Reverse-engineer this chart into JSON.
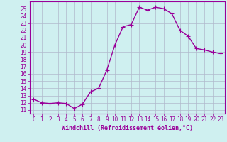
{
  "x": [
    0,
    1,
    2,
    3,
    4,
    5,
    6,
    7,
    8,
    9,
    10,
    11,
    12,
    13,
    14,
    15,
    16,
    17,
    18,
    19,
    20,
    21,
    22,
    23
  ],
  "y": [
    12.5,
    12.0,
    11.9,
    12.0,
    11.9,
    11.2,
    11.8,
    13.5,
    14.0,
    16.5,
    20.0,
    22.5,
    22.8,
    25.2,
    24.8,
    25.2,
    25.0,
    24.3,
    22.0,
    21.2,
    19.5,
    19.3,
    19.0,
    18.8
  ],
  "line_color": "#990099",
  "marker": "+",
  "markersize": 4,
  "linewidth": 1.0,
  "markeredgewidth": 0.8,
  "xlabel": "Windchill (Refroidissement éolien,°C)",
  "xlabel_fontsize": 6.0,
  "ylabel_ticks": [
    11,
    12,
    13,
    14,
    15,
    16,
    17,
    18,
    19,
    20,
    21,
    22,
    23,
    24,
    25
  ],
  "xticks": [
    0,
    1,
    2,
    3,
    4,
    5,
    6,
    7,
    8,
    9,
    10,
    11,
    12,
    13,
    14,
    15,
    16,
    17,
    18,
    19,
    20,
    21,
    22,
    23
  ],
  "xlim": [
    -0.5,
    23.5
  ],
  "ylim": [
    10.5,
    26.0
  ],
  "bg_color": "#cff0f0",
  "grid_color": "#b0b8cc",
  "tick_fontsize": 5.5
}
